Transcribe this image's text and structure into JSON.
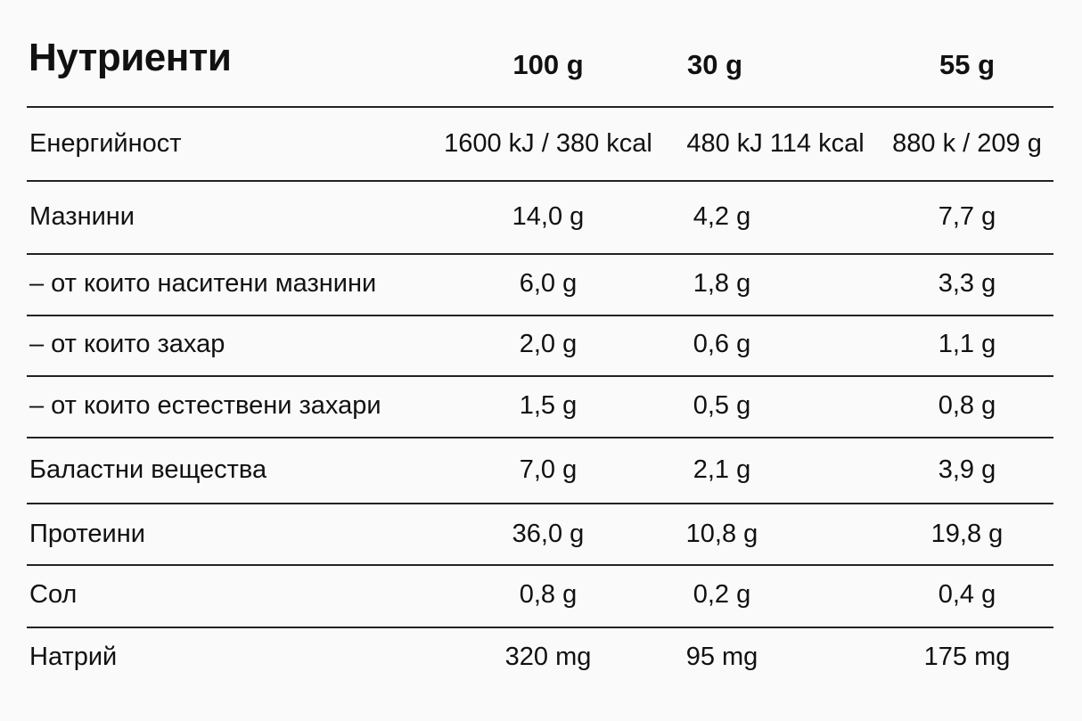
{
  "title": "Нутриенти",
  "columns": [
    "100 g",
    "30 g",
    "55 g"
  ],
  "rows": [
    {
      "label": "Енергийност",
      "values": [
        "1600 kJ / 380 kcal",
        "480 kJ 114 kcal",
        "880 k / 209 g"
      ]
    },
    {
      "label": "Мазнини",
      "values": [
        "14,0 g",
        "4,2 g",
        "7,7 g"
      ]
    },
    {
      "label": "– от които наситени мазнини",
      "values": [
        "6,0 g",
        "1,8 g",
        "3,3 g"
      ]
    },
    {
      "label": "– от които захар",
      "values": [
        "2,0 g",
        "0,6 g",
        "1,1 g"
      ]
    },
    {
      "label": "– от които естествени захари",
      "values": [
        "1,5 g",
        "0,5 g",
        "0,8 g"
      ]
    },
    {
      "label": "Баластни вещества",
      "values": [
        "7,0 g",
        "2,1 g",
        "3,9 g"
      ]
    },
    {
      "label": "Протеини",
      "values": [
        "36,0 g",
        "10,8 g",
        "19,8 g"
      ]
    },
    {
      "label": "Сол",
      "values": [
        "0,8 g",
        "0,2 g",
        "0,4 g"
      ]
    },
    {
      "label": "Натрий",
      "values": [
        "320 mg",
        "95 mg",
        "175 mg"
      ]
    }
  ]
}
